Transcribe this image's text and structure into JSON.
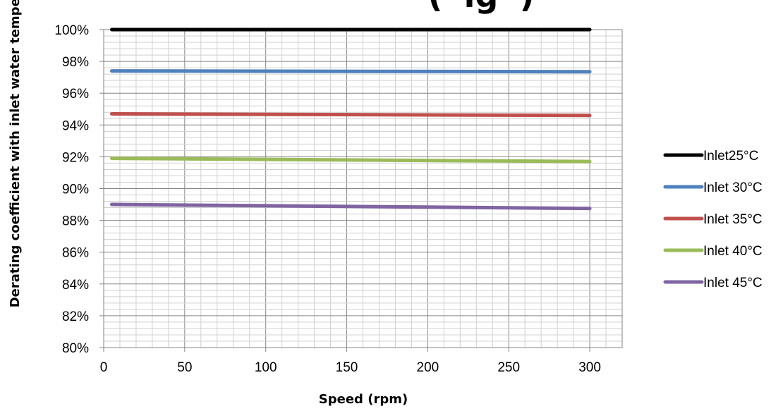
{
  "chart_data": {
    "type": "line",
    "title_visible_fragment": "(“ig”)",
    "xlabel": "Speed (rpm)",
    "ylabel": "Derating coefficient with inlet water temperature",
    "xlim": [
      0,
      320
    ],
    "ylim": [
      80,
      100
    ],
    "x_ticks": [
      "0",
      "50",
      "100",
      "150",
      "200",
      "250",
      "300"
    ],
    "y_ticks": [
      "80%",
      "82%",
      "84%",
      "86%",
      "88%",
      "90%",
      "92%",
      "94%",
      "96%",
      "98%",
      "100%"
    ],
    "x_tick_values": [
      0,
      50,
      100,
      150,
      200,
      250,
      300
    ],
    "y_tick_values": [
      80,
      82,
      84,
      86,
      88,
      90,
      92,
      94,
      96,
      98,
      100
    ],
    "grid": true,
    "legend_position": "right",
    "series": [
      {
        "name": "Inlet25°C",
        "color": "#000000",
        "x": [
          5,
          300
        ],
        "y": [
          100.0,
          100.0
        ]
      },
      {
        "name": "Inlet 30°C",
        "color": "#4F81BD",
        "x": [
          5,
          300
        ],
        "y": [
          97.4,
          97.35
        ]
      },
      {
        "name": "Inlet 35°C",
        "color": "#C0504D",
        "x": [
          5,
          300
        ],
        "y": [
          94.7,
          94.6
        ]
      },
      {
        "name": "Inlet 40°C",
        "color": "#9BBB59",
        "x": [
          5,
          300
        ],
        "y": [
          91.9,
          91.7
        ]
      },
      {
        "name": "Inlet 45°C",
        "color": "#8064A2",
        "x": [
          5,
          300
        ],
        "y": [
          89.0,
          88.75
        ]
      }
    ]
  }
}
